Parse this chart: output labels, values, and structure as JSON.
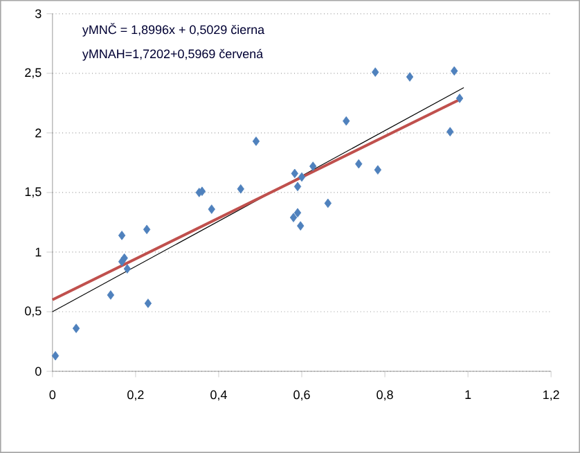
{
  "chart_data": {
    "type": "scatter",
    "annotations": [
      "yMNČ = 1,8996x + 0,5029 čierna",
      "yMNAH=1,7202+0,5969 červená"
    ],
    "series": [
      {
        "type": "scatter",
        "color": "#4f81bd",
        "marker": "diamond",
        "x": [
          0.007,
          0.057,
          0.14,
          0.167,
          0.167,
          0.173,
          0.18,
          0.227,
          0.23,
          0.353,
          0.36,
          0.383,
          0.453,
          0.49,
          0.58,
          0.583,
          0.59,
          0.59,
          0.597,
          0.6,
          0.627,
          0.663,
          0.707,
          0.737,
          0.777,
          0.783,
          0.86,
          0.957,
          0.967,
          0.98
        ],
        "values": [
          0.13,
          0.36,
          0.64,
          1.14,
          0.92,
          0.95,
          0.86,
          1.19,
          0.57,
          1.5,
          1.51,
          1.36,
          1.53,
          1.93,
          1.29,
          1.66,
          1.55,
          1.33,
          1.22,
          1.63,
          1.72,
          1.41,
          2.1,
          1.74,
          2.51,
          1.69,
          2.47,
          2.01,
          2.52,
          2.29
        ]
      },
      {
        "type": "line",
        "color": "#000000",
        "x": [
          0,
          0.99
        ],
        "values": [
          0.5,
          2.38
        ]
      },
      {
        "type": "line",
        "color": "#c0504d",
        "x": [
          0,
          0.98
        ],
        "values": [
          0.6,
          2.28
        ]
      }
    ],
    "xlim": [
      0,
      1.2
    ],
    "ylim": [
      0,
      3
    ],
    "xticks": [
      0,
      {
        "value": 0.2,
        "label": "0,2"
      },
      {
        "value": 0.4,
        "label": "0,4"
      },
      {
        "value": 0.6,
        "label": "0,6"
      },
      {
        "value": 0.8,
        "label": "0,8"
      },
      1,
      {
        "value": 1.2,
        "label": "1,2"
      }
    ],
    "yticks": [
      0,
      {
        "value": 0.5,
        "label": "0,5"
      },
      1,
      {
        "value": 1.5,
        "label": "1,5"
      },
      2,
      {
        "value": 2.5,
        "label": "2,5"
      },
      3
    ],
    "grid": "y"
  }
}
